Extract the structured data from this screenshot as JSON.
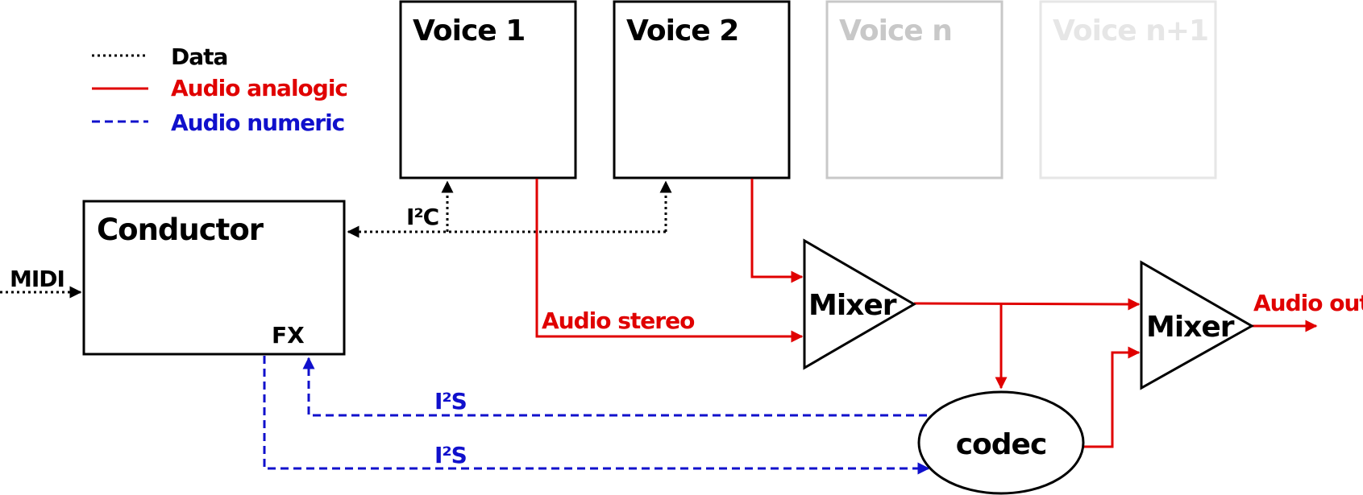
{
  "legend": {
    "data": "Data",
    "audio_analogic": "Audio analogic",
    "audio_numeric": "Audio numeric"
  },
  "blocks": {
    "voice1": "Voice 1",
    "voice2": "Voice 2",
    "voice_n": "Voice n",
    "voice_n1": "Voice n+1",
    "conductor": "Conductor",
    "fx": "FX",
    "mixer1": "Mixer",
    "mixer2": "Mixer",
    "codec": "codec"
  },
  "labels": {
    "midi": "MIDI",
    "i2c": "I²C",
    "audio_stereo": "Audio stereo",
    "audio_out": "Audio out",
    "i2s_top": "I²S",
    "i2s_bottom": "I²S"
  },
  "colors": {
    "data": "#000000",
    "analog": "#e00000",
    "numeric": "#1010cc",
    "faded_n": "#c8c8c8",
    "faded_n1": "#e6e6e6"
  }
}
